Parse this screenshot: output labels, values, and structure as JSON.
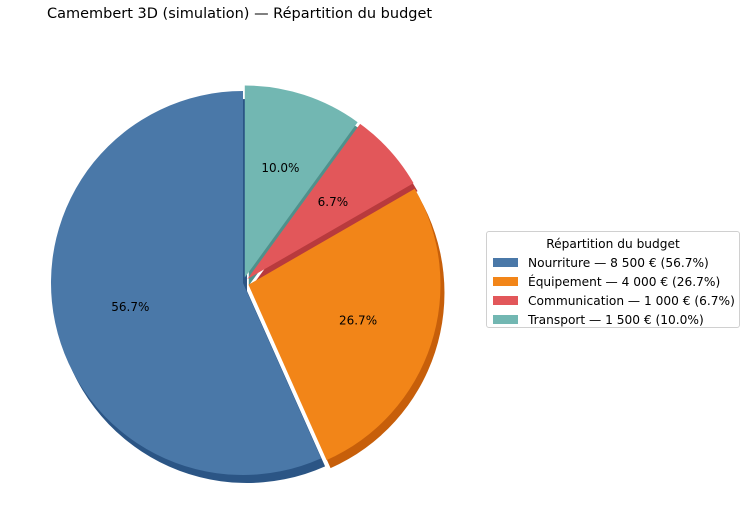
{
  "chart_data": {
    "type": "pie",
    "title": "Camembert 3D (simulation) — Répartition du budget",
    "categories": [
      "Nourriture",
      "Équipement",
      "Communication",
      "Transport"
    ],
    "values": [
      8500,
      4000,
      1000,
      1500
    ],
    "unit": "€",
    "percentages": [
      56.7,
      26.7,
      6.7,
      10.0
    ],
    "percent_labels": [
      "56.7%",
      "26.7%",
      "6.7%",
      "10.0%"
    ],
    "colors": [
      "#4a78a8",
      "#f28518",
      "#e2575a",
      "#72b7b2"
    ],
    "shadow_colors": [
      "#2b5585",
      "#c75f0a",
      "#b83a3d",
      "#4f918c"
    ],
    "explode": [
      0,
      0.03,
      0.03,
      0.03
    ],
    "start_angle": 90,
    "shadow": true,
    "legend": {
      "title": "Répartition du budget",
      "position": "center right",
      "entries": [
        "Nourriture — 8 500 € (56.7%)",
        "Équipement — 4 000 € (26.7%)",
        "Communication — 1 000 € (6.7%)",
        "Transport — 1 500 € (10.0%)"
      ]
    }
  }
}
